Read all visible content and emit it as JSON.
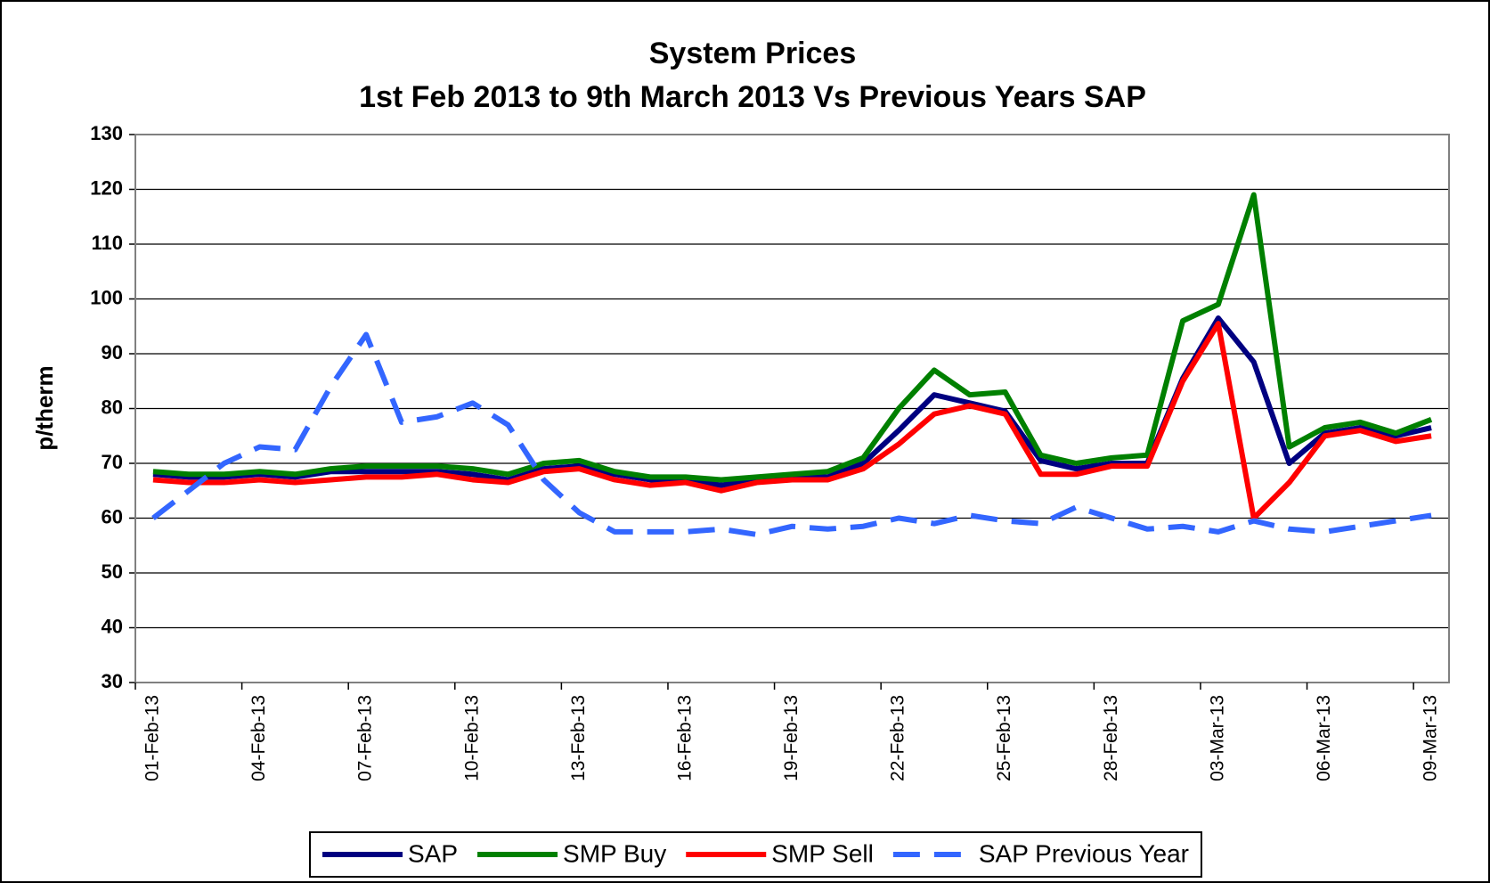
{
  "chart_data": {
    "type": "line",
    "title": "System Prices",
    "subtitle": "1st Feb 2013 to 9th March 2013 Vs Previous Years SAP",
    "y_label": "p/therm",
    "categories": [
      "01-Feb-13",
      null,
      null,
      "04-Feb-13",
      null,
      null,
      "07-Feb-13",
      null,
      null,
      "10-Feb-13",
      null,
      null,
      "13-Feb-13",
      null,
      null,
      "16-Feb-13",
      null,
      null,
      "19-Feb-13",
      null,
      null,
      "22-Feb-13",
      null,
      null,
      "25-Feb-13",
      null,
      null,
      "28-Feb-13",
      null,
      null,
      "03-Mar-13",
      null,
      null,
      "06-Mar-13",
      null,
      null,
      "09-Mar-13"
    ],
    "series": [
      {
        "name": "SAP",
        "color": "#000080",
        "values": [
          68,
          67.5,
          67.5,
          68,
          67.5,
          68.5,
          68.5,
          68.5,
          68.5,
          68,
          67,
          69,
          69.5,
          68,
          67,
          67,
          66,
          67,
          67.5,
          67.5,
          70,
          76,
          82.5,
          81,
          79.5,
          70.5,
          69,
          70,
          70,
          85.5,
          96.5,
          88.5,
          70,
          75.5,
          76.5,
          75,
          76.5
        ]
      },
      {
        "name": "SMP Buy",
        "color": "#008000",
        "values": [
          68.5,
          68,
          68,
          68.5,
          68,
          69,
          69.5,
          69.5,
          69.5,
          69,
          68,
          70,
          70.5,
          68.5,
          67.5,
          67.5,
          67,
          67.5,
          68,
          68.5,
          71,
          80,
          87,
          82.5,
          83,
          71.5,
          70,
          71,
          71.5,
          96,
          99,
          119,
          73,
          76.5,
          77.5,
          75.5,
          78
        ]
      },
      {
        "name": "SMP Sell",
        "color": "#ff0000",
        "values": [
          67,
          66.5,
          66.5,
          67,
          66.5,
          67,
          67.5,
          67.5,
          68,
          67,
          66.5,
          68.5,
          69,
          67,
          66,
          66.5,
          65,
          66.5,
          67,
          67,
          69,
          73.5,
          79,
          80.5,
          79,
          68,
          68,
          69.5,
          69.5,
          85,
          95.5,
          60,
          66.5,
          75,
          76,
          74,
          75
        ]
      },
      {
        "name": "SAP Previous Year",
        "color": "#3366ff",
        "dashed": true,
        "values": [
          60,
          65,
          70,
          73,
          72.5,
          84,
          93.5,
          77.5,
          78.5,
          81,
          77,
          67,
          61,
          57.5,
          57.5,
          57.5,
          58,
          57,
          58.5,
          58,
          58.5,
          60,
          59,
          60.5,
          59.5,
          59,
          62,
          60,
          58,
          58.5,
          57.5,
          59.5,
          58,
          57.5,
          58.5,
          59.5,
          60.5
        ]
      }
    ],
    "ylim": [
      30,
      130
    ],
    "yticks": [
      30,
      40,
      50,
      60,
      70,
      80,
      90,
      100,
      110,
      120,
      130
    ],
    "grid": true,
    "legend": "bottom"
  }
}
